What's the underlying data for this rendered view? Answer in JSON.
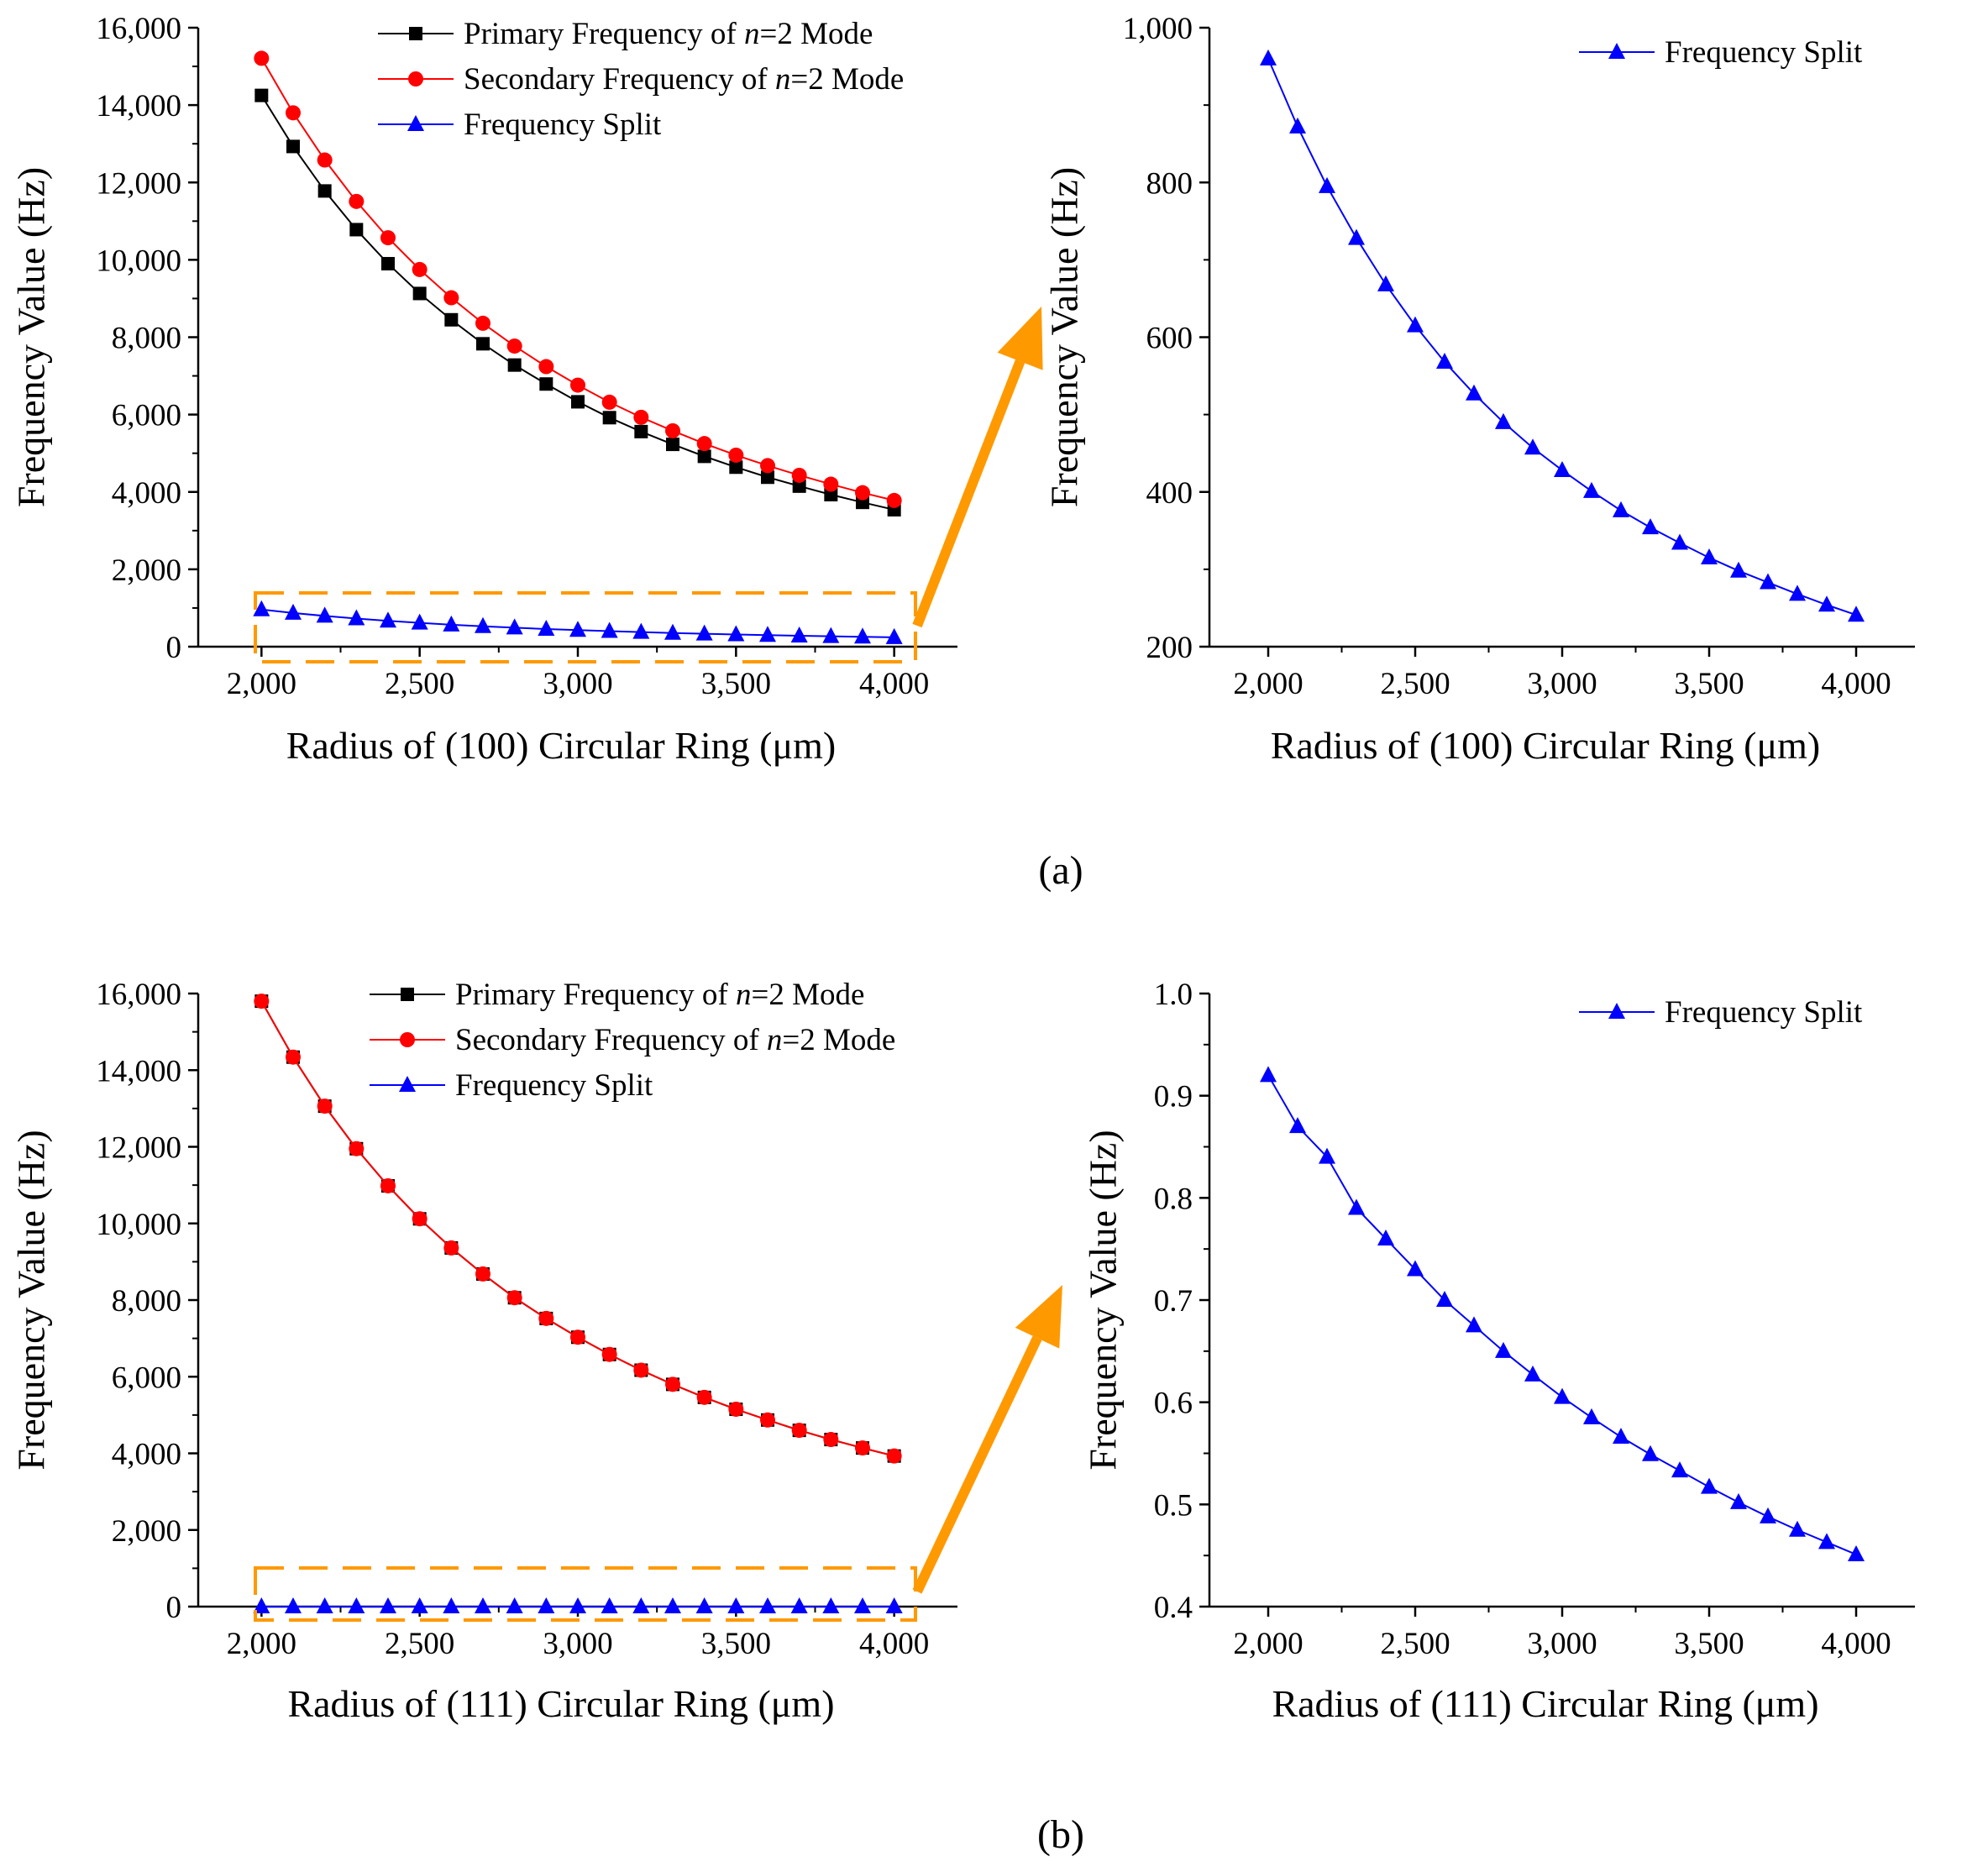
{
  "x_values": [
    2000,
    2100,
    2200,
    2300,
    2400,
    2500,
    2600,
    2700,
    2800,
    2900,
    3000,
    3100,
    3200,
    3300,
    3400,
    3500,
    3600,
    3700,
    3800,
    3900,
    4000
  ],
  "colors": {
    "primary": "#000000",
    "secondary": "#ff0000",
    "split": "#0000ff",
    "highlight": "#ff9900"
  },
  "chart_data": [
    {
      "id": "a_left",
      "type": "line",
      "ylabel": "Frequency Value (Hz)",
      "xlabel": "Radius of (100) Circular Ring (μm)",
      "xlim": [
        1800,
        4200
      ],
      "ylim": [
        0,
        16000
      ],
      "x_ticks": [
        "2,000",
        "2,500",
        "3,000",
        "3,500",
        "4,000"
      ],
      "y_ticks": [
        "0",
        "2,000",
        "4,000",
        "6,000",
        "8,000",
        "10,000",
        "12,000",
        "14,000",
        "16,000"
      ],
      "legend": "top-right",
      "series": [
        {
          "name_prefix": "Primary Frequency of ",
          "name_italic": "n",
          "name_suffix": "=2 Mode",
          "marker": "square",
          "color": "#000000",
          "values": [
            14250,
            12930,
            11780,
            10780,
            9900,
            9130,
            8450,
            7830,
            7280,
            6790,
            6330,
            5920,
            5560,
            5230,
            4920,
            4640,
            4380,
            4150,
            3930,
            3730,
            3540
          ]
        },
        {
          "name_prefix": "Secondary Frequency of ",
          "name_italic": "n",
          "name_suffix": "=2 Mode",
          "marker": "circle",
          "color": "#ff0000",
          "values": [
            15210,
            13800,
            12580,
            11510,
            10570,
            9750,
            9020,
            8360,
            7770,
            7240,
            6760,
            6320,
            5930,
            5580,
            5250,
            4950,
            4680,
            4430,
            4200,
            3980,
            3780
          ]
        },
        {
          "name_prefix": "Frequency Split",
          "name_italic": "",
          "name_suffix": "",
          "marker": "triangle",
          "color": "#0000ff",
          "values": [
            960,
            872,
            795,
            728,
            668,
            615,
            568,
            527,
            490,
            457,
            428,
            401,
            376,
            354,
            334,
            315,
            298,
            283,
            268,
            254,
            241
          ]
        }
      ]
    },
    {
      "id": "a_right",
      "type": "line",
      "ylabel": "Frequency Value (Hz)",
      "xlabel": "Radius of (100) Circular Ring (μm)",
      "xlim": [
        1800,
        4200
      ],
      "ylim": [
        200,
        1000
      ],
      "x_ticks": [
        "2,000",
        "2,500",
        "3,000",
        "3,500",
        "4,000"
      ],
      "y_ticks": [
        "200",
        "400",
        "600",
        "800",
        "1,000"
      ],
      "legend": "top-right",
      "series": [
        {
          "name_prefix": "Frequency Split",
          "name_italic": "",
          "name_suffix": "",
          "marker": "triangle",
          "color": "#0000ff",
          "values": [
            960,
            872,
            795,
            728,
            668,
            615,
            568,
            527,
            490,
            457,
            428,
            401,
            376,
            354,
            334,
            315,
            298,
            283,
            268,
            254,
            241
          ]
        }
      ]
    },
    {
      "id": "b_left",
      "type": "line",
      "ylabel": "Frequency Value (Hz)",
      "xlabel": "Radius of (111) Circular Ring (μm)",
      "xlim": [
        1800,
        4200
      ],
      "ylim": [
        0,
        16000
      ],
      "x_ticks": [
        "2,000",
        "2,500",
        "3,000",
        "3,500",
        "4,000"
      ],
      "y_ticks": [
        "0",
        "2,000",
        "4,000",
        "6,000",
        "8,000",
        "10,000",
        "12,000",
        "14,000",
        "16,000"
      ],
      "legend": "top-right",
      "series": [
        {
          "name_prefix": "Primary Frequency of ",
          "name_italic": "n",
          "name_suffix": "=2 Mode",
          "marker": "square",
          "color": "#000000",
          "values": [
            15800,
            14340,
            13060,
            11950,
            10980,
            10120,
            9360,
            8680,
            8060,
            7520,
            7030,
            6580,
            6170,
            5800,
            5460,
            5150,
            4870,
            4600,
            4360,
            4140,
            3930
          ]
        },
        {
          "name_prefix": "Secondary Frequency of ",
          "name_italic": "n",
          "name_suffix": "=2 Mode",
          "marker": "circle",
          "color": "#ff0000",
          "values": [
            15801,
            14341,
            13061,
            11951,
            10981,
            10121,
            9361,
            8681,
            8061,
            7521,
            7031,
            6581,
            6171,
            5801,
            5461,
            5151,
            4871,
            4601,
            4361,
            4141,
            3931
          ]
        },
        {
          "name_prefix": "Frequency Split",
          "name_italic": "",
          "name_suffix": "",
          "marker": "triangle",
          "color": "#0000ff",
          "values": [
            0.92,
            0.87,
            0.84,
            0.79,
            0.76,
            0.73,
            0.7,
            0.675,
            0.65,
            0.627,
            0.605,
            0.585,
            0.566,
            0.549,
            0.533,
            0.517,
            0.502,
            0.488,
            0.475,
            0.463,
            0.451
          ]
        }
      ]
    },
    {
      "id": "b_right",
      "type": "line",
      "ylabel": "Frequency Value (Hz)",
      "xlabel": "Radius of (111) Circular Ring (μm)",
      "xlim": [
        1800,
        4200
      ],
      "ylim": [
        0.4,
        1.0
      ],
      "x_ticks": [
        "2,000",
        "2,500",
        "3,000",
        "3,500",
        "4,000"
      ],
      "y_ticks": [
        "0.4",
        "0.5",
        "0.6",
        "0.7",
        "0.8",
        "0.9",
        "1.0"
      ],
      "legend": "top-right",
      "series": [
        {
          "name_prefix": "Frequency Split",
          "name_italic": "",
          "name_suffix": "",
          "marker": "triangle",
          "color": "#0000ff",
          "values": [
            0.92,
            0.87,
            0.84,
            0.79,
            0.76,
            0.73,
            0.7,
            0.675,
            0.65,
            0.627,
            0.605,
            0.585,
            0.566,
            0.549,
            0.533,
            0.517,
            0.502,
            0.488,
            0.475,
            0.463,
            0.451
          ]
        }
      ]
    }
  ],
  "captions": {
    "a": "(a)",
    "b": "(b)"
  }
}
